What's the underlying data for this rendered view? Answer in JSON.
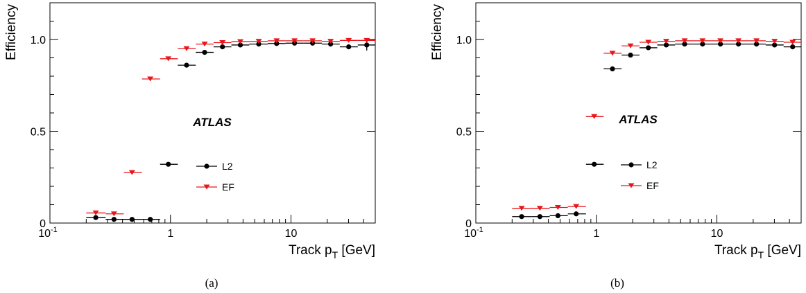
{
  "chart_data": [
    {
      "type": "scatter",
      "panel_label": "(a)",
      "annotation": "ATLAS",
      "xlabel": "Track p_T [GeV]",
      "xlabel_main": "Track p",
      "xlabel_sub": "T",
      "xlabel_unit": " [GeV]",
      "ylabel": "Efficiency",
      "xscale": "log",
      "xlim": [
        0.1,
        50
      ],
      "ylim": [
        0,
        1.2
      ],
      "x_tick_labels": {
        "0.1": "10",
        "1": "1",
        "10": "10"
      },
      "y_ticks": [
        0,
        0.5,
        1.0
      ],
      "y_tick_labels": [
        "0",
        "0.5",
        "1.0"
      ],
      "legend_position": "center",
      "series": [
        {
          "name": "L2",
          "color": "#000000",
          "marker": "circle",
          "points": [
            {
              "x": 0.24,
              "y": 0.03,
              "xlo": 0.2,
              "xhi": 0.29
            },
            {
              "x": 0.34,
              "y": 0.02,
              "xlo": 0.29,
              "xhi": 0.41
            },
            {
              "x": 0.48,
              "y": 0.02,
              "xlo": 0.41,
              "xhi": 0.58
            },
            {
              "x": 0.68,
              "y": 0.02,
              "xlo": 0.58,
              "xhi": 0.82
            },
            {
              "x": 0.96,
              "y": 0.32,
              "xlo": 0.82,
              "xhi": 1.15
            },
            {
              "x": 1.36,
              "y": 0.86,
              "xlo": 1.15,
              "xhi": 1.62
            },
            {
              "x": 1.92,
              "y": 0.93,
              "xlo": 1.62,
              "xhi": 2.28
            },
            {
              "x": 2.7,
              "y": 0.96,
              "xlo": 2.28,
              "xhi": 3.2
            },
            {
              "x": 3.8,
              "y": 0.97,
              "xlo": 3.2,
              "xhi": 4.5
            },
            {
              "x": 5.4,
              "y": 0.975,
              "xlo": 4.5,
              "xhi": 6.4
            },
            {
              "x": 7.6,
              "y": 0.978,
              "xlo": 6.4,
              "xhi": 9.0
            },
            {
              "x": 10.7,
              "y": 0.98,
              "xlo": 9.0,
              "xhi": 12.7
            },
            {
              "x": 15.1,
              "y": 0.98,
              "xlo": 12.7,
              "xhi": 18.0
            },
            {
              "x": 21.3,
              "y": 0.975,
              "xlo": 18.0,
              "xhi": 25.4
            },
            {
              "x": 30.1,
              "y": 0.96,
              "xlo": 25.4,
              "xhi": 35.8
            },
            {
              "x": 42.5,
              "y": 0.97,
              "xlo": 35.8,
              "xhi": 50.0,
              "ylo": 0.94,
              "yhi": 1.0
            }
          ]
        },
        {
          "name": "EF",
          "color": "#e8161b",
          "marker": "triangle-down",
          "points": [
            {
              "x": 0.24,
              "y": 0.055,
              "xlo": 0.2,
              "xhi": 0.29
            },
            {
              "x": 0.34,
              "y": 0.05,
              "xlo": 0.29,
              "xhi": 0.41
            },
            {
              "x": 0.48,
              "y": 0.275,
              "xlo": 0.41,
              "xhi": 0.58
            },
            {
              "x": 0.68,
              "y": 0.785,
              "xlo": 0.58,
              "xhi": 0.82
            },
            {
              "x": 0.96,
              "y": 0.895,
              "xlo": 0.82,
              "xhi": 1.15
            },
            {
              "x": 1.36,
              "y": 0.95,
              "xlo": 1.15,
              "xhi": 1.62
            },
            {
              "x": 1.92,
              "y": 0.975,
              "xlo": 1.62,
              "xhi": 2.28
            },
            {
              "x": 2.7,
              "y": 0.983,
              "xlo": 2.28,
              "xhi": 3.2
            },
            {
              "x": 3.8,
              "y": 0.988,
              "xlo": 3.2,
              "xhi": 4.5
            },
            {
              "x": 5.4,
              "y": 0.99,
              "xlo": 4.5,
              "xhi": 6.4
            },
            {
              "x": 7.6,
              "y": 0.993,
              "xlo": 6.4,
              "xhi": 9.0
            },
            {
              "x": 10.7,
              "y": 0.993,
              "xlo": 9.0,
              "xhi": 12.7
            },
            {
              "x": 15.1,
              "y": 0.993,
              "xlo": 12.7,
              "xhi": 18.0
            },
            {
              "x": 21.3,
              "y": 0.99,
              "xlo": 18.0,
              "xhi": 25.4
            },
            {
              "x": 30.1,
              "y": 0.995,
              "xlo": 25.4,
              "xhi": 35.8
            },
            {
              "x": 42.5,
              "y": 0.995,
              "xlo": 35.8,
              "xhi": 50.0
            }
          ]
        }
      ]
    },
    {
      "type": "scatter",
      "panel_label": "(b)",
      "annotation": "ATLAS",
      "xlabel": "Track p_T [GeV]",
      "xlabel_main": "Track p",
      "xlabel_sub": "T",
      "xlabel_unit": " [GeV]",
      "ylabel": "Efficiency",
      "xscale": "log",
      "xlim": [
        0.1,
        50
      ],
      "ylim": [
        0,
        1.2
      ],
      "x_tick_labels": {
        "0.1": "10",
        "1": "1",
        "10": "10"
      },
      "y_ticks": [
        0,
        0.5,
        1.0
      ],
      "y_tick_labels": [
        "0",
        "0.5",
        "1.0"
      ],
      "legend_position": "center",
      "series": [
        {
          "name": "L2",
          "color": "#000000",
          "marker": "circle",
          "points": [
            {
              "x": 0.24,
              "y": 0.035,
              "xlo": 0.2,
              "xhi": 0.29
            },
            {
              "x": 0.34,
              "y": 0.035,
              "xlo": 0.29,
              "xhi": 0.41
            },
            {
              "x": 0.48,
              "y": 0.04,
              "xlo": 0.41,
              "xhi": 0.58
            },
            {
              "x": 0.68,
              "y": 0.05,
              "xlo": 0.58,
              "xhi": 0.82
            },
            {
              "x": 0.96,
              "y": 0.32,
              "xlo": 0.82,
              "xhi": 1.15
            },
            {
              "x": 1.36,
              "y": 0.84,
              "xlo": 1.15,
              "xhi": 1.62
            },
            {
              "x": 1.92,
              "y": 0.915,
              "xlo": 1.62,
              "xhi": 2.28
            },
            {
              "x": 2.7,
              "y": 0.955,
              "xlo": 2.28,
              "xhi": 3.2
            },
            {
              "x": 3.8,
              "y": 0.97,
              "xlo": 3.2,
              "xhi": 4.5
            },
            {
              "x": 5.4,
              "y": 0.975,
              "xlo": 4.5,
              "xhi": 6.4
            },
            {
              "x": 7.6,
              "y": 0.975,
              "xlo": 6.4,
              "xhi": 9.0
            },
            {
              "x": 10.7,
              "y": 0.975,
              "xlo": 9.0,
              "xhi": 12.7
            },
            {
              "x": 15.1,
              "y": 0.975,
              "xlo": 12.7,
              "xhi": 18.0
            },
            {
              "x": 21.3,
              "y": 0.975,
              "xlo": 18.0,
              "xhi": 25.4
            },
            {
              "x": 30.1,
              "y": 0.97,
              "xlo": 25.4,
              "xhi": 35.8
            },
            {
              "x": 42.5,
              "y": 0.96,
              "xlo": 35.8,
              "xhi": 50.0
            }
          ]
        },
        {
          "name": "EF",
          "color": "#e8161b",
          "marker": "triangle-down",
          "points": [
            {
              "x": 0.24,
              "y": 0.08,
              "xlo": 0.2,
              "xhi": 0.29
            },
            {
              "x": 0.34,
              "y": 0.08,
              "xlo": 0.29,
              "xhi": 0.41
            },
            {
              "x": 0.48,
              "y": 0.085,
              "xlo": 0.41,
              "xhi": 0.58
            },
            {
              "x": 0.68,
              "y": 0.09,
              "xlo": 0.58,
              "xhi": 0.82
            },
            {
              "x": 0.96,
              "y": 0.58,
              "xlo": 0.82,
              "xhi": 1.15
            },
            {
              "x": 1.36,
              "y": 0.925,
              "xlo": 1.15,
              "xhi": 1.62
            },
            {
              "x": 1.92,
              "y": 0.965,
              "xlo": 1.62,
              "xhi": 2.28
            },
            {
              "x": 2.7,
              "y": 0.985,
              "xlo": 2.28,
              "xhi": 3.2
            },
            {
              "x": 3.8,
              "y": 0.99,
              "xlo": 3.2,
              "xhi": 4.5
            },
            {
              "x": 5.4,
              "y": 0.993,
              "xlo": 4.5,
              "xhi": 6.4
            },
            {
              "x": 7.6,
              "y": 0.993,
              "xlo": 6.4,
              "xhi": 9.0
            },
            {
              "x": 10.7,
              "y": 0.993,
              "xlo": 9.0,
              "xhi": 12.7
            },
            {
              "x": 15.1,
              "y": 0.993,
              "xlo": 12.7,
              "xhi": 18.0
            },
            {
              "x": 21.3,
              "y": 0.993,
              "xlo": 18.0,
              "xhi": 25.4
            },
            {
              "x": 30.1,
              "y": 0.99,
              "xlo": 25.4,
              "xhi": 35.8
            },
            {
              "x": 42.5,
              "y": 0.985,
              "xlo": 35.8,
              "xhi": 50.0
            }
          ]
        }
      ]
    }
  ]
}
